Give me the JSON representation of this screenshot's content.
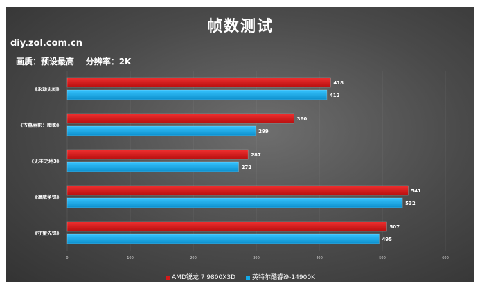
{
  "title": "帧数测试",
  "source": "diy.zol.com.cn",
  "settings": "画质：预设最高    分辨率：2K",
  "colors": {
    "amd": "#d41a1a",
    "intel": "#13a9e8"
  },
  "chart_data": {
    "type": "bar",
    "orientation": "horizontal",
    "categories": [
      "《永劫无间》",
      "《古墓丽影：暗影》",
      "《无主之地3》",
      "《漫威争锋》",
      "《守望先锋》"
    ],
    "series": [
      {
        "name": "AMD锐龙 7 9800X3D",
        "values": [
          418,
          360,
          287,
          541,
          507
        ]
      },
      {
        "name": "英特尔酷睿i9-14900K",
        "values": [
          412,
          299,
          272,
          532,
          495
        ]
      }
    ],
    "xlim": [
      0,
      600
    ],
    "xticks": [
      0,
      100,
      200,
      300,
      400,
      500,
      600
    ],
    "legend": "bottom"
  }
}
